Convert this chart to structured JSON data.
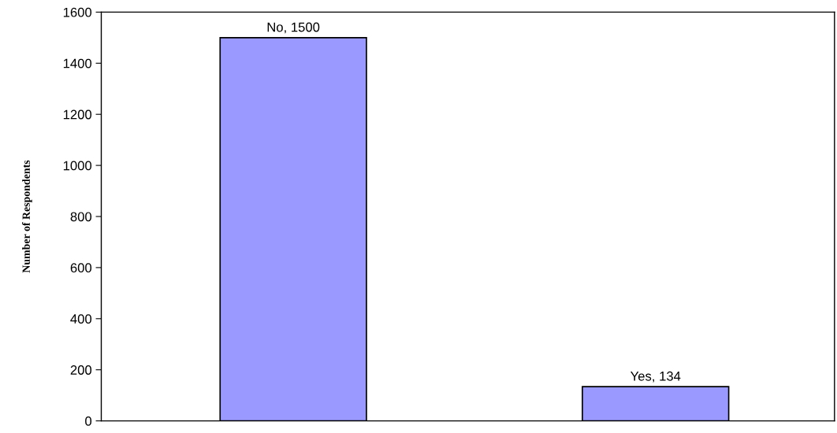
{
  "chart_data": {
    "type": "bar",
    "ylabel": "Number of Respondents",
    "categories": [
      null,
      null
    ],
    "values": [
      1500,
      134
    ],
    "value_labels": [
      "No, 1500",
      "Yes, 134"
    ],
    "color": "#9999ff",
    "ylim": [
      0,
      1600
    ],
    "yticks": [
      0,
      200,
      400,
      600,
      800,
      1000,
      1200,
      1400,
      1600
    ],
    "grid": false,
    "legend": false
  }
}
